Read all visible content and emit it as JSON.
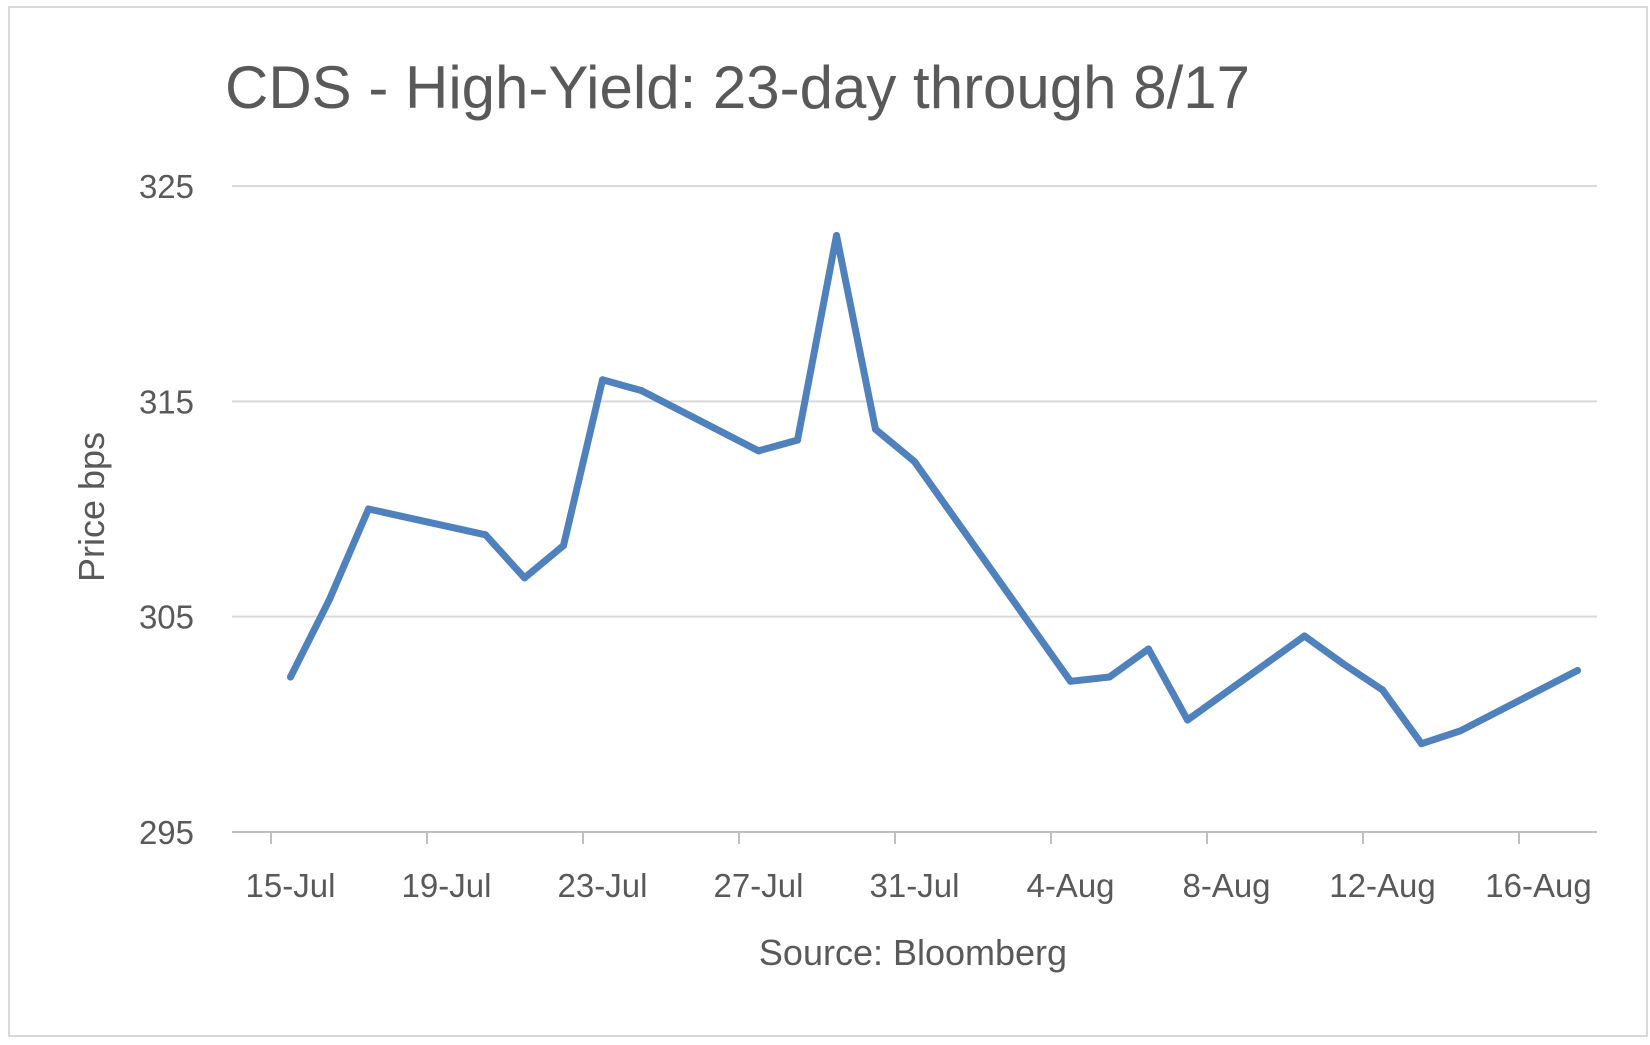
{
  "chart_data": {
    "type": "line",
    "title": "CDS - High-Yield: 23-day through 8/17",
    "xlabel": "Source: Bloomberg",
    "ylabel": "Price bps",
    "ylim": [
      295,
      325
    ],
    "yticks": [
      295,
      305,
      315,
      325
    ],
    "xlim": [
      "2019-07-14",
      "2019-08-17"
    ],
    "xticks": [
      {
        "date": "2019-07-15",
        "label": "15-Jul"
      },
      {
        "date": "2019-07-19",
        "label": "19-Jul"
      },
      {
        "date": "2019-07-23",
        "label": "23-Jul"
      },
      {
        "date": "2019-07-27",
        "label": "27-Jul"
      },
      {
        "date": "2019-07-31",
        "label": "31-Jul"
      },
      {
        "date": "2019-08-04",
        "label": "4-Aug"
      },
      {
        "date": "2019-08-08",
        "label": "8-Aug"
      },
      {
        "date": "2019-08-12",
        "label": "12-Aug"
      },
      {
        "date": "2019-08-16",
        "label": "16-Aug"
      }
    ],
    "grid": true,
    "legend": "none",
    "colors": {
      "line": "#4f81bd",
      "grid": "#d9d9d9",
      "axis": "#bfbfbf",
      "text": "#595959"
    },
    "series": [
      {
        "points": [
          {
            "x": "2019-07-15",
            "y": 302.2
          },
          {
            "x": "2019-07-16",
            "y": 305.8
          },
          {
            "x": "2019-07-17",
            "y": 310.0
          },
          {
            "x": "2019-07-20",
            "y": 308.8
          },
          {
            "x": "2019-07-21",
            "y": 306.8
          },
          {
            "x": "2019-07-22",
            "y": 308.3
          },
          {
            "x": "2019-07-23",
            "y": 316.0
          },
          {
            "x": "2019-07-24",
            "y": 315.5
          },
          {
            "x": "2019-07-27",
            "y": 312.7
          },
          {
            "x": "2019-07-28",
            "y": 313.2
          },
          {
            "x": "2019-07-29",
            "y": 322.7
          },
          {
            "x": "2019-07-30",
            "y": 313.7
          },
          {
            "x": "2019-07-31",
            "y": 312.2
          },
          {
            "x": "2019-08-04",
            "y": 302.0
          },
          {
            "x": "2019-08-05",
            "y": 302.2
          },
          {
            "x": "2019-08-06",
            "y": 303.5
          },
          {
            "x": "2019-08-07",
            "y": 300.2
          },
          {
            "x": "2019-08-10",
            "y": 304.1
          },
          {
            "x": "2019-08-11",
            "y": 302.8
          },
          {
            "x": "2019-08-12",
            "y": 301.6
          },
          {
            "x": "2019-08-13",
            "y": 299.1
          },
          {
            "x": "2019-08-14",
            "y": 299.7
          },
          {
            "x": "2019-08-17",
            "y": 302.5
          }
        ]
      }
    ]
  }
}
